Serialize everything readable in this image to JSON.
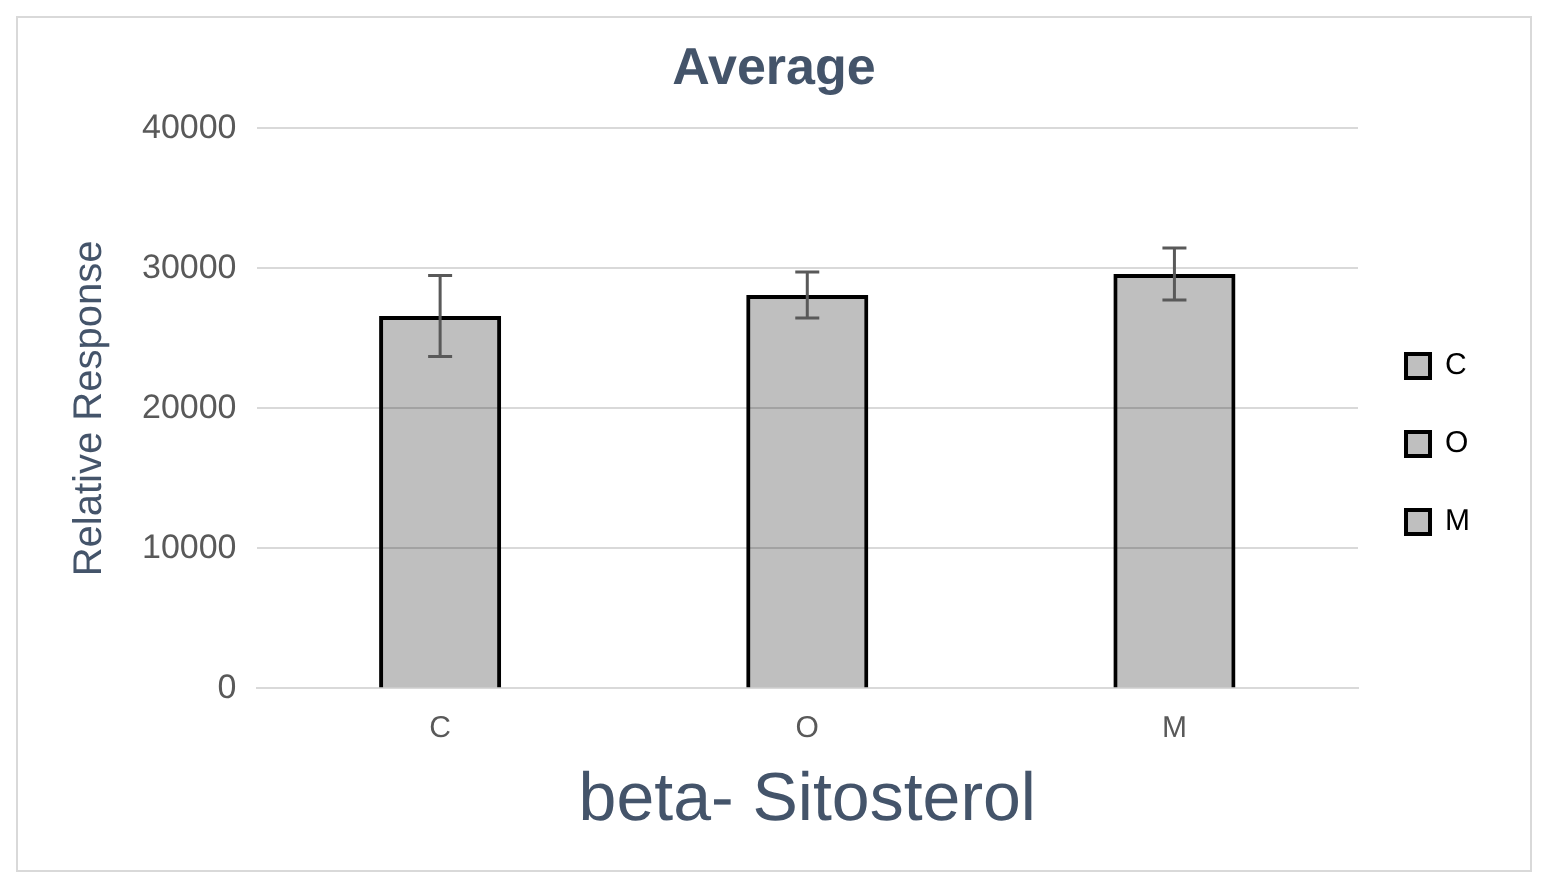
{
  "chart_data": {
    "type": "bar",
    "title": "Average",
    "xlabel": "beta- Sitosterol",
    "ylabel": "Relative Response",
    "categories": [
      "C",
      "O",
      "M"
    ],
    "series": [
      {
        "name": "C",
        "color": "#000000",
        "values": [
          26600,
          null,
          null
        ],
        "errors": [
          2900,
          null,
          null
        ]
      },
      {
        "name": "O",
        "color": "#000000",
        "values": [
          null,
          28100,
          null
        ],
        "errors": [
          null,
          1650,
          null
        ]
      },
      {
        "name": "M",
        "color": "#000000",
        "values": [
          null,
          null,
          29600
        ],
        "errors": [
          null,
          null,
          1850
        ]
      }
    ],
    "ylim": [
      0,
      40000
    ],
    "yticks": [
      0,
      10000,
      20000,
      30000,
      40000
    ],
    "grid": "y",
    "legend": "right"
  }
}
